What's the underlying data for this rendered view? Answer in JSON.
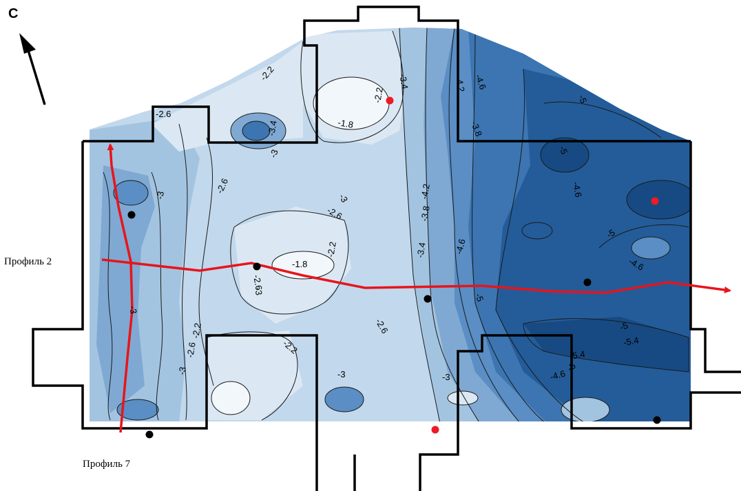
{
  "north_label": "С",
  "profiles": [
    {
      "label": "Профиль 2"
    },
    {
      "label": "Профиль 7"
    }
  ],
  "contour_labels": [
    "-2.2",
    "-2.6",
    "-3.4",
    "-3",
    "-2.6",
    "-3",
    "-3.4",
    "-2.2",
    "-1.8",
    "-4.2",
    "-4.6",
    "-5",
    "-3.8",
    "-5",
    "-4.6",
    "-3",
    "-2.6",
    "-4.2",
    "-3.8",
    "-2.2",
    "-5",
    "-4.6",
    "-1.8",
    "-2.6",
    "-3",
    "-3.4",
    "-4.6",
    "-5",
    "-5",
    "-5.4",
    "-3",
    "-2.6",
    "-2.2",
    "-2.2",
    "-2.6",
    "-3",
    "-3",
    "-3",
    "-5.4",
    "-4.6",
    "-5"
  ],
  "colors": {
    "c1": "#f2f7fb",
    "c2": "#dbe8f3",
    "c3": "#c2d8ec",
    "c4": "#a3c4e0",
    "c5": "#7fa9d2",
    "c6": "#5a8ec4",
    "c7": "#3c75b1",
    "c8": "#245c99",
    "c9": "#174a83",
    "profile_line": "#e8141b",
    "red_point": "#ee1b24",
    "black_point": "#000000",
    "walls": "#000000"
  }
}
